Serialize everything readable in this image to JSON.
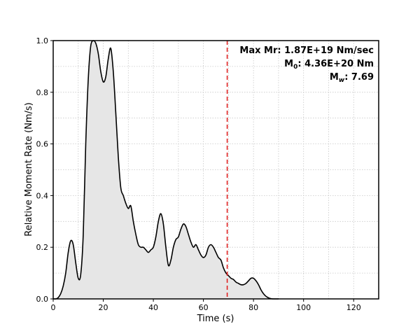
{
  "chart_data": {
    "type": "area",
    "title": "",
    "xlabel": "Time (s)",
    "ylabel": "Relative Moment Rate (Nm/s)",
    "xlim": [
      0,
      130
    ],
    "ylim": [
      0,
      1.0
    ],
    "xticks": [
      0,
      20,
      40,
      60,
      80,
      100,
      120
    ],
    "yticks": [
      0.0,
      0.2,
      0.4,
      0.6,
      0.8,
      1.0
    ],
    "xtick_labels": [
      "0",
      "20",
      "40",
      "60",
      "80",
      "100",
      "120"
    ],
    "ytick_labels": [
      "0.0",
      "0.2",
      "0.4",
      "0.6",
      "0.8",
      "1.0"
    ],
    "grid": true,
    "fill_color": "#e6e6e6",
    "line_color": "#000000",
    "vline": {
      "x": 69.5,
      "color": "#e02020",
      "style": "dashed"
    },
    "series": [
      {
        "x": [
          0,
          1,
          2,
          3,
          4,
          5,
          6,
          7,
          8,
          9,
          10,
          11,
          12,
          13,
          14,
          15,
          16,
          17,
          18,
          19,
          20,
          21,
          22,
          23,
          24,
          25,
          26,
          27,
          28,
          29,
          30,
          31,
          32,
          33,
          34,
          35,
          36,
          37,
          38,
          39,
          40,
          41,
          42,
          43,
          44,
          45,
          46,
          47,
          48,
          49,
          50,
          51,
          52,
          53,
          54,
          55,
          56,
          57,
          58,
          59,
          60,
          61,
          62,
          63,
          64,
          65,
          66,
          67,
          68,
          69,
          70,
          71,
          72,
          73,
          74,
          75,
          76,
          77,
          78,
          79,
          80,
          81,
          82,
          83,
          84,
          85,
          86,
          87,
          88,
          89,
          90
        ],
        "y": [
          0.0,
          0.0,
          0.005,
          0.02,
          0.05,
          0.1,
          0.18,
          0.225,
          0.21,
          0.14,
          0.08,
          0.095,
          0.25,
          0.6,
          0.85,
          0.98,
          1.0,
          0.99,
          0.95,
          0.88,
          0.84,
          0.86,
          0.93,
          0.97,
          0.88,
          0.72,
          0.55,
          0.43,
          0.4,
          0.37,
          0.35,
          0.36,
          0.3,
          0.25,
          0.21,
          0.2,
          0.2,
          0.19,
          0.18,
          0.19,
          0.2,
          0.24,
          0.3,
          0.33,
          0.29,
          0.2,
          0.13,
          0.15,
          0.2,
          0.23,
          0.24,
          0.27,
          0.29,
          0.28,
          0.25,
          0.22,
          0.2,
          0.21,
          0.19,
          0.17,
          0.16,
          0.17,
          0.2,
          0.21,
          0.2,
          0.18,
          0.16,
          0.15,
          0.12,
          0.1,
          0.09,
          0.08,
          0.075,
          0.065,
          0.06,
          0.055,
          0.055,
          0.06,
          0.07,
          0.08,
          0.08,
          0.07,
          0.055,
          0.035,
          0.02,
          0.01,
          0.004,
          0.001,
          0.0,
          0.0,
          0.0
        ]
      }
    ],
    "annotations": {
      "line1": "Max Mr: 1.87E+19 Nm/sec",
      "m0_prefix": "M",
      "m0_sub": "0",
      "m0_value": ": 4.36E+20 Nm",
      "mw_prefix": "M",
      "mw_sub": "w",
      "mw_value": ": 7.69"
    }
  }
}
